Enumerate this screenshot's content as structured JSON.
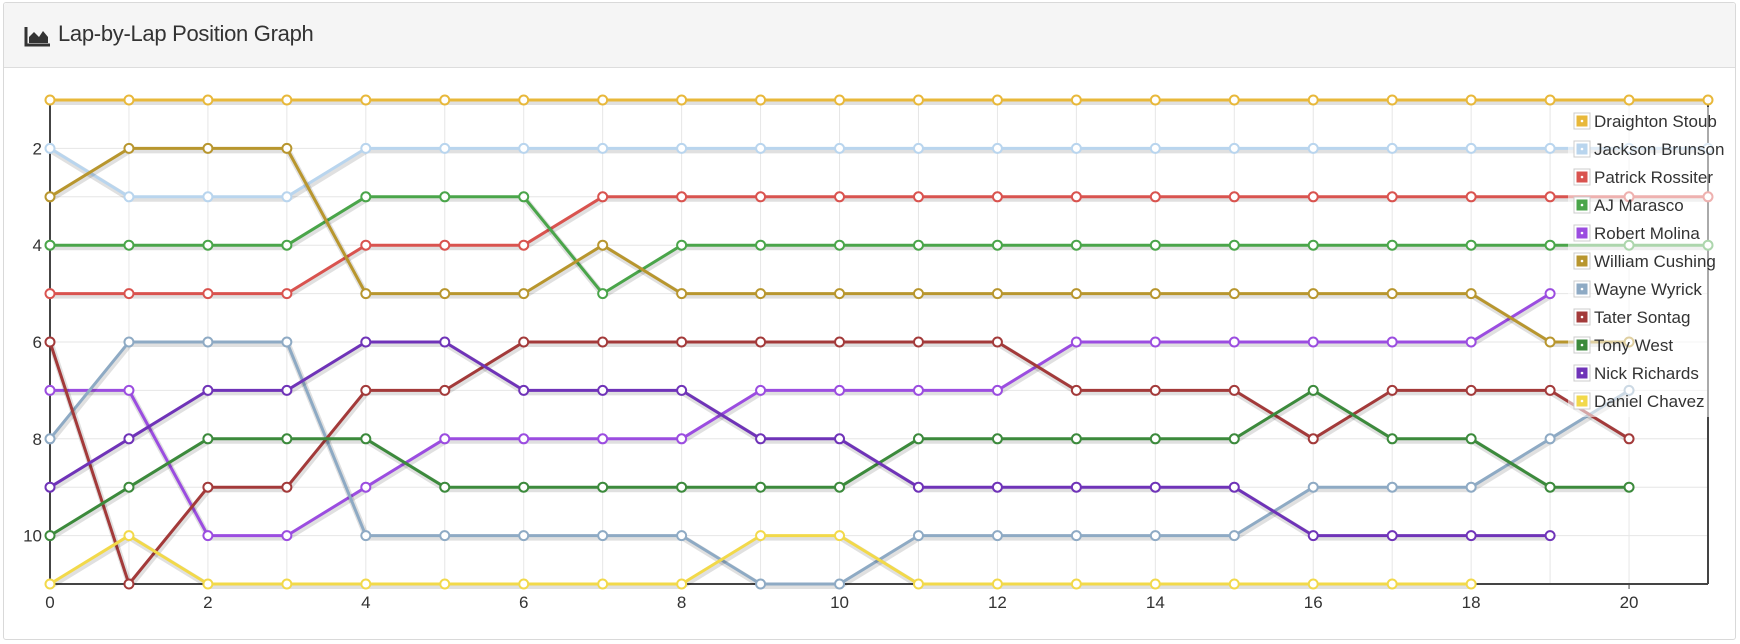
{
  "panel": {
    "title": "Lap-by-Lap Position Graph",
    "icon": "area-chart-icon"
  },
  "chart_data": {
    "type": "line",
    "title": "",
    "xlabel": "",
    "ylabel": "",
    "xlim": [
      0,
      21
    ],
    "ylim": [
      1,
      11
    ],
    "y_inverted": true,
    "x_ticks": [
      0,
      2,
      4,
      6,
      8,
      10,
      12,
      14,
      16,
      18,
      20
    ],
    "y_ticks": [
      2,
      4,
      6,
      8,
      10
    ],
    "grid": true,
    "legend_position": "top-right",
    "series": [
      {
        "name": "Draighton Stoub",
        "color": "#e8b83a",
        "x": [
          0,
          1,
          2,
          3,
          4,
          5,
          6,
          7,
          8,
          9,
          10,
          11,
          12,
          13,
          14,
          15,
          16,
          17,
          18,
          19,
          20,
          21
        ],
        "values": [
          1,
          1,
          1,
          1,
          1,
          1,
          1,
          1,
          1,
          1,
          1,
          1,
          1,
          1,
          1,
          1,
          1,
          1,
          1,
          1,
          1,
          1
        ]
      },
      {
        "name": "Jackson Brunson",
        "color": "#b9d5ee",
        "x": [
          0,
          1,
          2,
          3,
          4,
          5,
          6,
          7,
          8,
          9,
          10,
          11,
          12,
          13,
          14,
          15,
          16,
          17,
          18,
          19,
          20,
          21
        ],
        "values": [
          2,
          3,
          3,
          3,
          2,
          2,
          2,
          2,
          2,
          2,
          2,
          2,
          2,
          2,
          2,
          2,
          2,
          2,
          2,
          2,
          2,
          2
        ]
      },
      {
        "name": "Patrick Rossiter",
        "color": "#d9534f",
        "x": [
          0,
          1,
          2,
          3,
          4,
          5,
          6,
          7,
          8,
          9,
          10,
          11,
          12,
          13,
          14,
          15,
          16,
          17,
          18,
          19,
          20,
          21
        ],
        "values": [
          5,
          5,
          5,
          5,
          4,
          4,
          4,
          3,
          3,
          3,
          3,
          3,
          3,
          3,
          3,
          3,
          3,
          3,
          3,
          3,
          3,
          3
        ]
      },
      {
        "name": "AJ Marasco",
        "color": "#4aa54a",
        "x": [
          0,
          1,
          2,
          3,
          4,
          5,
          6,
          7,
          8,
          9,
          10,
          11,
          12,
          13,
          14,
          15,
          16,
          17,
          18,
          19,
          20,
          21
        ],
        "values": [
          4,
          4,
          4,
          4,
          3,
          3,
          3,
          5,
          4,
          4,
          4,
          4,
          4,
          4,
          4,
          4,
          4,
          4,
          4,
          4,
          4,
          4
        ]
      },
      {
        "name": "Robert Molina",
        "color": "#9b4de0",
        "x": [
          0,
          1,
          2,
          3,
          4,
          5,
          6,
          7,
          8,
          9,
          10,
          11,
          12,
          13,
          14,
          15,
          16,
          17,
          18,
          19
        ],
        "values": [
          7,
          7,
          10,
          10,
          9,
          8,
          8,
          8,
          8,
          7,
          7,
          7,
          7,
          6,
          6,
          6,
          6,
          6,
          6,
          5
        ]
      },
      {
        "name": "William Cushing",
        "color": "#b8962e",
        "x": [
          0,
          1,
          2,
          3,
          4,
          5,
          6,
          7,
          8,
          9,
          10,
          11,
          12,
          13,
          14,
          15,
          16,
          17,
          18,
          19,
          20
        ],
        "values": [
          3,
          2,
          2,
          2,
          5,
          5,
          5,
          4,
          5,
          5,
          5,
          5,
          5,
          5,
          5,
          5,
          5,
          5,
          5,
          6,
          6
        ]
      },
      {
        "name": "Wayne Wyrick",
        "color": "#8eaac4",
        "x": [
          0,
          1,
          2,
          3,
          4,
          5,
          6,
          7,
          8,
          9,
          10,
          11,
          12,
          13,
          14,
          15,
          16,
          17,
          18,
          19,
          20
        ],
        "values": [
          8,
          6,
          6,
          6,
          10,
          10,
          10,
          10,
          10,
          11,
          11,
          10,
          10,
          10,
          10,
          10,
          9,
          9,
          9,
          8,
          7
        ]
      },
      {
        "name": "Tater Sontag",
        "color": "#a33a3a",
        "x": [
          0,
          1,
          2,
          3,
          4,
          5,
          6,
          7,
          8,
          9,
          10,
          11,
          12,
          13,
          14,
          15,
          16,
          17,
          18,
          19,
          20
        ],
        "values": [
          6,
          11,
          9,
          9,
          7,
          7,
          6,
          6,
          6,
          6,
          6,
          6,
          6,
          7,
          7,
          7,
          8,
          7,
          7,
          7,
          8
        ]
      },
      {
        "name": "Tony West",
        "color": "#3c8a3c",
        "x": [
          0,
          1,
          2,
          3,
          4,
          5,
          6,
          7,
          8,
          9,
          10,
          11,
          12,
          13,
          14,
          15,
          16,
          17,
          18,
          19,
          20
        ],
        "values": [
          10,
          9,
          8,
          8,
          8,
          9,
          9,
          9,
          9,
          9,
          9,
          8,
          8,
          8,
          8,
          8,
          7,
          8,
          8,
          9,
          9
        ]
      },
      {
        "name": "Nick Richards",
        "color": "#6f33b8",
        "x": [
          0,
          1,
          2,
          3,
          4,
          5,
          6,
          7,
          8,
          9,
          10,
          11,
          12,
          13,
          14,
          15,
          16,
          17,
          18,
          19
        ],
        "values": [
          9,
          8,
          7,
          7,
          6,
          6,
          7,
          7,
          7,
          8,
          8,
          9,
          9,
          9,
          9,
          9,
          10,
          10,
          10,
          10
        ]
      },
      {
        "name": "Daniel Chavez",
        "color": "#f2d94a",
        "x": [
          0,
          1,
          2,
          3,
          4,
          5,
          6,
          7,
          8,
          9,
          10,
          11,
          12,
          13,
          14,
          15,
          16,
          17,
          18
        ],
        "values": [
          11,
          10,
          11,
          11,
          11,
          11,
          11,
          11,
          11,
          10,
          10,
          11,
          11,
          11,
          11,
          11,
          11,
          11,
          11
        ]
      }
    ]
  }
}
